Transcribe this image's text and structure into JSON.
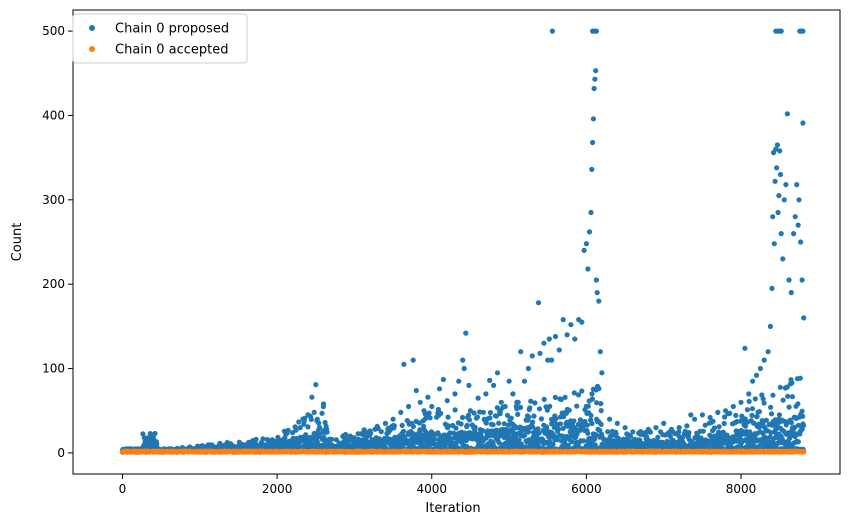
{
  "chart_data": {
    "type": "scatter",
    "title": "",
    "xlabel": "Iteration",
    "ylabel": "Count",
    "xlim": [
      -640,
      9280
    ],
    "ylim": [
      -25,
      525
    ],
    "xticks": [
      0,
      2000,
      4000,
      6000,
      8000
    ],
    "yticks": [
      0,
      100,
      200,
      300,
      400,
      500
    ],
    "grid": false,
    "legend_position": "upper-left",
    "series": [
      {
        "name": "Chain 0 proposed",
        "color": "#1f77b4",
        "points": [
          [
            0,
            1
          ],
          [
            20,
            2
          ],
          [
            40,
            3
          ],
          [
            60,
            2
          ],
          [
            80,
            4
          ],
          [
            100,
            3
          ],
          [
            120,
            2
          ],
          [
            140,
            3
          ],
          [
            160,
            4
          ],
          [
            180,
            3
          ],
          [
            200,
            4
          ],
          [
            220,
            3
          ],
          [
            240,
            3
          ],
          [
            260,
            4
          ],
          [
            280,
            5
          ],
          [
            300,
            12
          ],
          [
            320,
            14
          ],
          [
            340,
            9
          ],
          [
            360,
            16
          ],
          [
            380,
            11
          ],
          [
            400,
            18
          ],
          [
            420,
            23
          ],
          [
            440,
            13
          ],
          [
            480,
            2
          ],
          [
            600,
            3
          ],
          [
            800,
            3
          ],
          [
            1000,
            4
          ],
          [
            1200,
            5
          ],
          [
            1400,
            6
          ],
          [
            1600,
            7
          ],
          [
            1700,
            8
          ],
          [
            1800,
            10
          ],
          [
            1900,
            12
          ],
          [
            2000,
            14
          ],
          [
            2100,
            18
          ],
          [
            2200,
            24
          ],
          [
            2300,
            30
          ],
          [
            2350,
            38
          ],
          [
            2400,
            45
          ],
          [
            2450,
            66
          ],
          [
            2480,
            48
          ],
          [
            2500,
            81
          ],
          [
            2520,
            40
          ],
          [
            2550,
            30
          ],
          [
            2580,
            47
          ],
          [
            2600,
            58
          ],
          [
            2620,
            36
          ],
          [
            2640,
            28
          ],
          [
            2700,
            10
          ],
          [
            2800,
            12
          ],
          [
            2900,
            15
          ],
          [
            3000,
            18
          ],
          [
            3100,
            22
          ],
          [
            3200,
            26
          ],
          [
            3300,
            30
          ],
          [
            3400,
            35
          ],
          [
            3500,
            40
          ],
          [
            3600,
            48
          ],
          [
            3640,
            105
          ],
          [
            3700,
            55
          ],
          [
            3760,
            110
          ],
          [
            3800,
            74
          ],
          [
            3850,
            60
          ],
          [
            3900,
            50
          ],
          [
            3950,
            66
          ],
          [
            4000,
            55
          ],
          [
            4100,
            76
          ],
          [
            4150,
            87
          ],
          [
            4200,
            62
          ],
          [
            4300,
            70
          ],
          [
            4350,
            85
          ],
          [
            4400,
            110
          ],
          [
            4420,
            100
          ],
          [
            4440,
            142
          ],
          [
            4480,
            80
          ],
          [
            4500,
            50
          ],
          [
            4600,
            65
          ],
          [
            4700,
            70
          ],
          [
            4750,
            86
          ],
          [
            4800,
            80
          ],
          [
            4850,
            95
          ],
          [
            4900,
            60
          ],
          [
            4950,
            55
          ],
          [
            5000,
            85
          ],
          [
            5050,
            70
          ],
          [
            5100,
            60
          ],
          [
            5150,
            120
          ],
          [
            5200,
            85
          ],
          [
            5250,
            100
          ],
          [
            5300,
            115
          ],
          [
            5380,
            178
          ],
          [
            5400,
            118
          ],
          [
            5450,
            130
          ],
          [
            5500,
            110
          ],
          [
            5520,
            135
          ],
          [
            5550,
            110
          ],
          [
            5600,
            138
          ],
          [
            5650,
            122
          ],
          [
            5700,
            158
          ],
          [
            5750,
            140
          ],
          [
            5800,
            152
          ],
          [
            5850,
            135
          ],
          [
            5900,
            158
          ],
          [
            5940,
            155
          ],
          [
            5970,
            240
          ],
          [
            6000,
            248
          ],
          [
            6020,
            218
          ],
          [
            6040,
            262
          ],
          [
            6060,
            285
          ],
          [
            6070,
            336
          ],
          [
            6080,
            368
          ],
          [
            6090,
            396
          ],
          [
            6100,
            432
          ],
          [
            6110,
            443
          ],
          [
            6120,
            453
          ],
          [
            6130,
            205
          ],
          [
            6140,
            190
          ],
          [
            6160,
            180
          ],
          [
            6180,
            120
          ],
          [
            6200,
            95
          ],
          [
            5560,
            500
          ],
          [
            6080,
            500
          ],
          [
            6110,
            500
          ],
          [
            6130,
            500
          ],
          [
            6300,
            40
          ],
          [
            6400,
            35
          ],
          [
            6500,
            30
          ],
          [
            6600,
            25
          ],
          [
            6700,
            22
          ],
          [
            6800,
            28
          ],
          [
            6900,
            30
          ],
          [
            7000,
            35
          ],
          [
            7100,
            28
          ],
          [
            7200,
            30
          ],
          [
            7300,
            32
          ],
          [
            7350,
            45
          ],
          [
            7400,
            40
          ],
          [
            7500,
            45
          ],
          [
            7600,
            42
          ],
          [
            7700,
            48
          ],
          [
            7800,
            50
          ],
          [
            7900,
            55
          ],
          [
            8000,
            60
          ],
          [
            8050,
            124
          ],
          [
            8100,
            70
          ],
          [
            8150,
            85
          ],
          [
            8200,
            92
          ],
          [
            8250,
            100
          ],
          [
            8300,
            110
          ],
          [
            8350,
            120
          ],
          [
            8380,
            150
          ],
          [
            8400,
            195
          ],
          [
            8410,
            280
          ],
          [
            8420,
            356
          ],
          [
            8430,
            248
          ],
          [
            8440,
            322
          ],
          [
            8450,
            360
          ],
          [
            8460,
            338
          ],
          [
            8470,
            365
          ],
          [
            8480,
            285
          ],
          [
            8490,
            305
          ],
          [
            8500,
            358
          ],
          [
            8510,
            330
          ],
          [
            8520,
            260
          ],
          [
            8540,
            230
          ],
          [
            8560,
            300
          ],
          [
            8580,
            318
          ],
          [
            8600,
            402
          ],
          [
            8620,
            205
          ],
          [
            8650,
            190
          ],
          [
            8680,
            260
          ],
          [
            8700,
            280
          ],
          [
            8720,
            318
          ],
          [
            8740,
            270
          ],
          [
            8750,
            300
          ],
          [
            8770,
            250
          ],
          [
            8790,
            205
          ],
          [
            8800,
            391
          ],
          [
            8810,
            160
          ],
          [
            8450,
            500
          ],
          [
            8480,
            500
          ],
          [
            8500,
            500
          ],
          [
            8520,
            500
          ],
          [
            8760,
            500
          ],
          [
            8780,
            500
          ],
          [
            8800,
            500
          ]
        ]
      },
      {
        "name": "Chain 0 accepted",
        "color": "#ff7f0e",
        "points": [
          [
            0,
            1
          ],
          [
            500,
            1
          ],
          [
            1000,
            1
          ],
          [
            1500,
            1
          ],
          [
            2000,
            1
          ],
          [
            2500,
            1
          ],
          [
            3000,
            1
          ],
          [
            3500,
            1
          ],
          [
            4000,
            1
          ],
          [
            4500,
            1
          ],
          [
            5000,
            1
          ],
          [
            5500,
            1
          ],
          [
            6000,
            1
          ],
          [
            6500,
            1
          ],
          [
            7000,
            1
          ],
          [
            7500,
            1
          ],
          [
            8000,
            1
          ],
          [
            8500,
            1
          ],
          [
            8810,
            1
          ]
        ]
      }
    ]
  }
}
